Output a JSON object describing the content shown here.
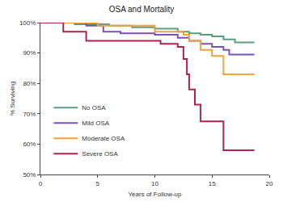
{
  "chart_data": {
    "type": "line",
    "title": "OSA and Mortality",
    "x_label": "Years of Follow-up",
    "y_label": "% Surviving",
    "line_style": "step",
    "grid": false,
    "legend": "lower left",
    "xlim": [
      0,
      20
    ],
    "xticks": [
      0,
      5,
      10,
      15,
      20
    ],
    "ylim": [
      50,
      100
    ],
    "yticks": [
      {
        "value": 50,
        "label": "50%"
      },
      {
        "value": 60,
        "label": "60%"
      },
      {
        "value": 70,
        "label": "70%"
      },
      {
        "value": 80,
        "label": "80%"
      },
      {
        "value": 90,
        "label": "90%"
      },
      {
        "value": 100,
        "label": "100%"
      }
    ],
    "series": [
      {
        "name": "No OSA",
        "color": "#5a9e7e",
        "x": [
          0,
          3,
          6,
          8,
          10,
          12,
          13,
          14,
          15,
          16,
          17,
          18.7
        ],
        "values": [
          100,
          99.5,
          99,
          98.5,
          98,
          97,
          96.5,
          96,
          95.5,
          94.5,
          93.5,
          93.5
        ]
      },
      {
        "name": "Mild OSA",
        "color": "#7a52b3",
        "x": [
          0,
          4,
          5.5,
          7,
          10,
          12,
          13,
          14,
          15,
          16,
          16.5,
          18.7
        ],
        "values": [
          100,
          99,
          97,
          96.5,
          96,
          95,
          94,
          93,
          92,
          91,
          89.5,
          89.5
        ]
      },
      {
        "name": "Moderate OSA",
        "color": "#f0a23c",
        "x": [
          0,
          5,
          10,
          12.5,
          13,
          14,
          15,
          16,
          18.7
        ],
        "values": [
          100,
          99,
          97,
          96,
          94,
          91,
          89,
          83,
          83
        ]
      },
      {
        "name": "Severe OSA",
        "color": "#b3214e",
        "x": [
          0,
          2,
          4,
          10.5,
          12,
          12.5,
          12.8,
          13,
          13.5,
          14,
          16,
          18.7
        ],
        "values": [
          100,
          97,
          94,
          93,
          92,
          88,
          83,
          78,
          73,
          67.5,
          58,
          58
        ]
      }
    ]
  }
}
